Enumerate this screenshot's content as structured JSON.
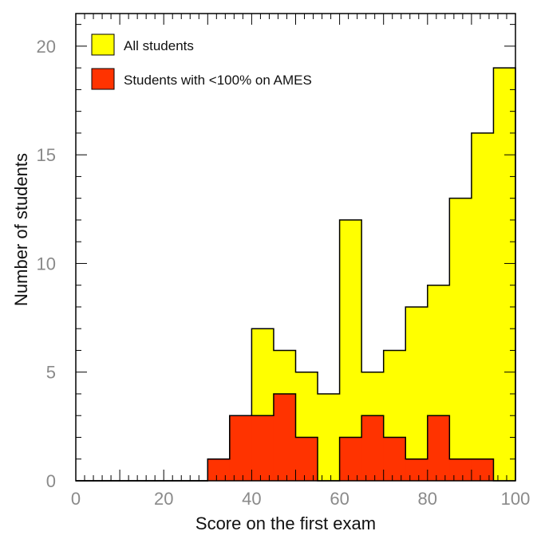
{
  "chart_data": {
    "type": "bar",
    "title": "",
    "xlabel": "Score on the first exam",
    "ylabel": "Number of students",
    "xlim": [
      0,
      100
    ],
    "ylim": [
      0,
      21.5
    ],
    "bin_width": 5,
    "xticks": [
      0,
      20,
      40,
      60,
      80,
      100
    ],
    "xtick_labels": [
      "0",
      "20",
      "40",
      "60",
      "80",
      "100"
    ],
    "yticks": [
      0,
      5,
      10,
      15,
      20
    ],
    "ytick_labels": [
      "0",
      "5",
      "10",
      "15",
      "20"
    ],
    "categories": [
      "0-5",
      "5-10",
      "10-15",
      "15-20",
      "20-25",
      "25-30",
      "30-35",
      "35-40",
      "40-45",
      "45-50",
      "50-55",
      "55-60",
      "60-65",
      "65-70",
      "70-75",
      "75-80",
      "80-85",
      "85-90",
      "90-95",
      "95-100"
    ],
    "bin_starts": [
      0,
      5,
      10,
      15,
      20,
      25,
      30,
      35,
      40,
      45,
      50,
      55,
      60,
      65,
      70,
      75,
      80,
      85,
      90,
      95
    ],
    "series": [
      {
        "name": "All students",
        "color": "#ffff00",
        "values": [
          0,
          0,
          0,
          0,
          0,
          0,
          1,
          3,
          7,
          6,
          5,
          4,
          12,
          5,
          6,
          8,
          9,
          13,
          16,
          19
        ]
      },
      {
        "name": "Students with <100% on AMES",
        "color": "#ff3300",
        "values": [
          0,
          0,
          0,
          0,
          0,
          0,
          1,
          3,
          3,
          4,
          2,
          0,
          2,
          3,
          2,
          1,
          3,
          1,
          1,
          0
        ]
      }
    ],
    "legend_position": "top-left",
    "grid": false
  }
}
